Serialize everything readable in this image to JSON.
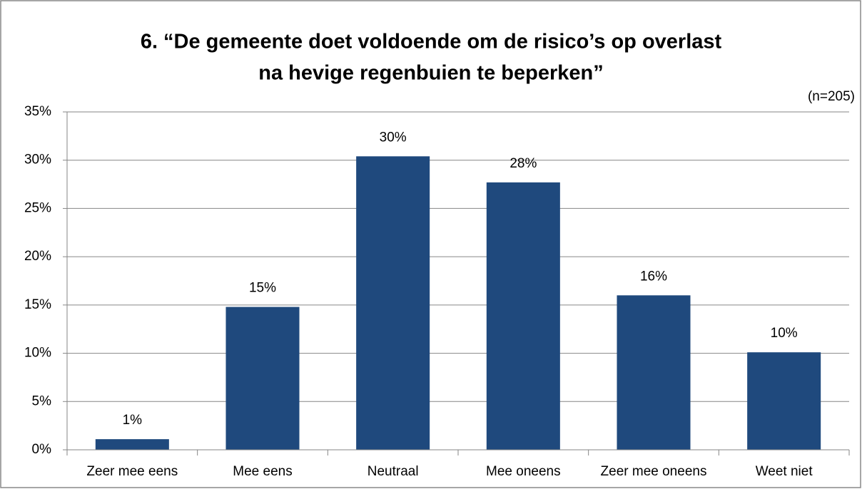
{
  "chart_data": {
    "type": "bar",
    "title": [
      "6. “De gemeente doet voldoende om de risico’s op overlast",
      "na hevige regenbuien te beperken”"
    ],
    "annotation": "(n=205)",
    "categories": [
      "Zeer mee eens",
      "Mee eens",
      "Neutraal",
      "Mee oneens",
      "Zeer mee oneens",
      "Weet niet"
    ],
    "values": [
      1.1,
      14.8,
      30.4,
      27.7,
      16.0,
      10.1
    ],
    "value_labels": [
      "1%",
      "15%",
      "30%",
      "28%",
      "16%",
      "10%"
    ],
    "color": "#1f497d",
    "ylim": [
      0,
      35
    ],
    "yticks": [
      {
        "value": 0,
        "label": "0%"
      },
      {
        "value": 5,
        "label": "5%"
      },
      {
        "value": 10,
        "label": "10%"
      },
      {
        "value": 15,
        "label": "15%"
      },
      {
        "value": 20,
        "label": "20%"
      },
      {
        "value": 25,
        "label": "25%"
      },
      {
        "value": 30,
        "label": "30%"
      },
      {
        "value": 35,
        "label": "35%"
      }
    ],
    "grid": true
  }
}
